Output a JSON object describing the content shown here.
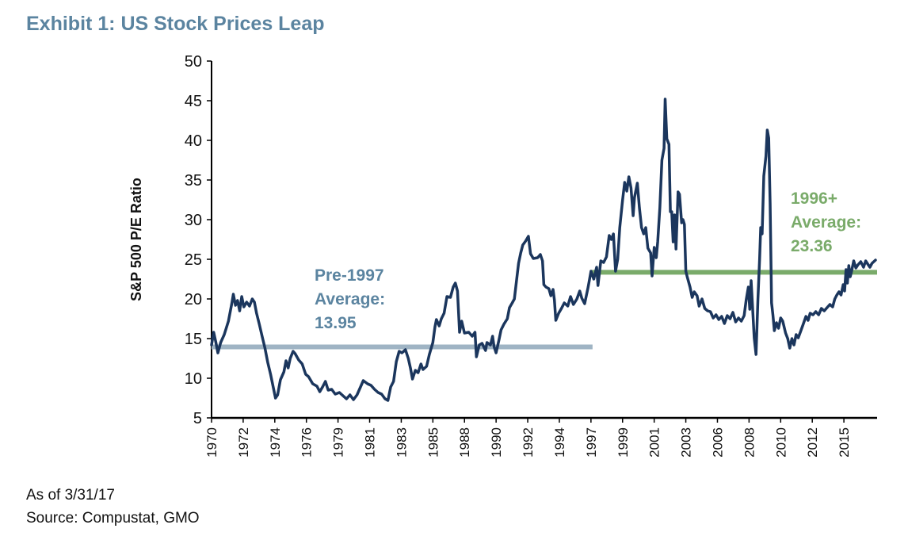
{
  "title": "Exhibit 1: US Stock Prices Leap",
  "footnotes": [
    "As of 3/31/17",
    "Source: Compustat, GMO"
  ],
  "chart_data": {
    "type": "line",
    "title": "Exhibit 1: US Stock Prices Leap",
    "xlabel": "",
    "ylabel": "S&P 500 P/E Ratio",
    "ylim": [
      5,
      50
    ],
    "xlim": [
      1970,
      2017.25
    ],
    "yticks": [
      5,
      10,
      15,
      20,
      25,
      30,
      35,
      40,
      45,
      50
    ],
    "xtick_labels": [
      "1970",
      "1972",
      "1974",
      "1976",
      "1979",
      "1981",
      "1983",
      "1985",
      "1988",
      "1990",
      "1992",
      "1994",
      "1997",
      "1999",
      "2001",
      "2003",
      "2006",
      "2008",
      "2010",
      "2012",
      "2015"
    ],
    "xtick_positions": [
      1970,
      1972.25,
      1974.5,
      1976.75,
      1979,
      1981.25,
      1983.5,
      1985.75,
      1988,
      1990.25,
      1992.5,
      1994.75,
      1997,
      1999.25,
      2001.5,
      2003.75,
      2006,
      2008.25,
      2010.5,
      2012.75,
      2015
    ],
    "grid": false,
    "colors": {
      "series": "#1b365d",
      "pre_avg": "#9fb4c4",
      "post_avg": "#7aab6a",
      "pre_text": "#5b84a0",
      "post_text": "#7aab6a",
      "title": "#5b84a0"
    },
    "series": [
      {
        "name": "S&P 500 P/E Ratio",
        "points": [
          [
            1970.0,
            14.2
          ],
          [
            1970.15,
            15.8
          ],
          [
            1970.3,
            14.6
          ],
          [
            1970.45,
            13.2
          ],
          [
            1970.65,
            14.5
          ],
          [
            1970.9,
            15.5
          ],
          [
            1971.2,
            17.2
          ],
          [
            1971.45,
            19.5
          ],
          [
            1971.55,
            20.6
          ],
          [
            1971.7,
            19.2
          ],
          [
            1971.85,
            19.8
          ],
          [
            1972.0,
            18.5
          ],
          [
            1972.15,
            20.3
          ],
          [
            1972.3,
            19.0
          ],
          [
            1972.5,
            19.6
          ],
          [
            1972.7,
            19.1
          ],
          [
            1972.9,
            20.0
          ],
          [
            1973.05,
            19.6
          ],
          [
            1973.2,
            18.2
          ],
          [
            1973.4,
            16.8
          ],
          [
            1973.6,
            15.3
          ],
          [
            1973.8,
            13.8
          ],
          [
            1974.0,
            12.0
          ],
          [
            1974.2,
            10.5
          ],
          [
            1974.4,
            8.8
          ],
          [
            1974.55,
            7.5
          ],
          [
            1974.7,
            7.9
          ],
          [
            1974.9,
            9.8
          ],
          [
            1975.15,
            10.8
          ],
          [
            1975.3,
            12.2
          ],
          [
            1975.45,
            11.3
          ],
          [
            1975.6,
            12.5
          ],
          [
            1975.8,
            13.4
          ],
          [
            1975.95,
            13.1
          ],
          [
            1976.2,
            12.3
          ],
          [
            1976.45,
            11.8
          ],
          [
            1976.7,
            10.5
          ],
          [
            1976.9,
            10.2
          ],
          [
            1977.2,
            9.3
          ],
          [
            1977.5,
            9.0
          ],
          [
            1977.7,
            8.3
          ],
          [
            1977.9,
            8.9
          ],
          [
            1978.1,
            9.6
          ],
          [
            1978.3,
            8.5
          ],
          [
            1978.55,
            8.6
          ],
          [
            1978.8,
            8.0
          ],
          [
            1979.1,
            8.2
          ],
          [
            1979.35,
            7.8
          ],
          [
            1979.6,
            7.4
          ],
          [
            1979.85,
            7.9
          ],
          [
            1980.1,
            7.3
          ],
          [
            1980.35,
            7.9
          ],
          [
            1980.6,
            8.9
          ],
          [
            1980.8,
            9.7
          ],
          [
            1981.1,
            9.3
          ],
          [
            1981.35,
            9.1
          ],
          [
            1981.6,
            8.6
          ],
          [
            1981.85,
            8.2
          ],
          [
            1982.1,
            8.0
          ],
          [
            1982.35,
            7.4
          ],
          [
            1982.55,
            7.2
          ],
          [
            1982.75,
            8.9
          ],
          [
            1982.95,
            9.6
          ],
          [
            1983.15,
            12.1
          ],
          [
            1983.35,
            13.4
          ],
          [
            1983.55,
            13.2
          ],
          [
            1983.8,
            13.6
          ],
          [
            1984.0,
            12.5
          ],
          [
            1984.15,
            11.3
          ],
          [
            1984.3,
            9.9
          ],
          [
            1984.5,
            11.0
          ],
          [
            1984.7,
            10.7
          ],
          [
            1984.9,
            11.8
          ],
          [
            1985.05,
            11.1
          ],
          [
            1985.3,
            11.5
          ],
          [
            1985.5,
            13.0
          ],
          [
            1985.75,
            14.5
          ],
          [
            1985.9,
            16.5
          ],
          [
            1986.0,
            17.4
          ],
          [
            1986.2,
            16.6
          ],
          [
            1986.35,
            17.5
          ],
          [
            1986.55,
            18.2
          ],
          [
            1986.75,
            20.3
          ],
          [
            1987.0,
            20.2
          ],
          [
            1987.2,
            21.5
          ],
          [
            1987.35,
            22.0
          ],
          [
            1987.5,
            21.0
          ],
          [
            1987.65,
            15.8
          ],
          [
            1987.8,
            17.2
          ],
          [
            1988.0,
            15.7
          ],
          [
            1988.3,
            15.8
          ],
          [
            1988.55,
            15.3
          ],
          [
            1988.75,
            15.8
          ],
          [
            1988.85,
            12.7
          ],
          [
            1989.05,
            14.2
          ],
          [
            1989.25,
            14.4
          ],
          [
            1989.5,
            13.5
          ],
          [
            1989.6,
            14.5
          ],
          [
            1989.85,
            14.2
          ],
          [
            1990.0,
            15.3
          ],
          [
            1990.1,
            14.0
          ],
          [
            1990.25,
            13.2
          ],
          [
            1990.45,
            14.8
          ],
          [
            1990.6,
            16.1
          ],
          [
            1990.8,
            16.8
          ],
          [
            1991.05,
            17.5
          ],
          [
            1991.2,
            18.9
          ],
          [
            1991.4,
            19.5
          ],
          [
            1991.55,
            20.0
          ],
          [
            1991.7,
            22.3
          ],
          [
            1991.85,
            24.5
          ],
          [
            1992.0,
            25.8
          ],
          [
            1992.15,
            26.8
          ],
          [
            1992.35,
            27.3
          ],
          [
            1992.55,
            27.9
          ],
          [
            1992.7,
            25.7
          ],
          [
            1992.9,
            25.1
          ],
          [
            1993.2,
            25.2
          ],
          [
            1993.4,
            25.6
          ],
          [
            1993.55,
            24.8
          ],
          [
            1993.65,
            21.8
          ],
          [
            1993.8,
            21.5
          ],
          [
            1994.0,
            21.3
          ],
          [
            1994.15,
            20.4
          ],
          [
            1994.3,
            21.2
          ],
          [
            1994.4,
            19.9
          ],
          [
            1994.5,
            17.3
          ],
          [
            1994.7,
            18.2
          ],
          [
            1994.9,
            18.8
          ],
          [
            1995.1,
            19.5
          ],
          [
            1995.35,
            19.1
          ],
          [
            1995.55,
            20.3
          ],
          [
            1995.75,
            19.3
          ],
          [
            1996.0,
            20.0
          ],
          [
            1996.2,
            21.0
          ],
          [
            1996.35,
            20.1
          ],
          [
            1996.55,
            19.4
          ],
          [
            1996.8,
            21.5
          ],
          [
            1997.0,
            23.5
          ],
          [
            1997.2,
            22.5
          ],
          [
            1997.4,
            24.0
          ],
          [
            1997.5,
            21.7
          ],
          [
            1997.7,
            24.8
          ],
          [
            1997.9,
            24.6
          ],
          [
            1998.1,
            25.3
          ],
          [
            1998.3,
            28.0
          ],
          [
            1998.45,
            27.5
          ],
          [
            1998.6,
            28.2
          ],
          [
            1998.75,
            23.5
          ],
          [
            1998.9,
            25.0
          ],
          [
            1999.05,
            29.0
          ],
          [
            1999.25,
            32.5
          ],
          [
            1999.4,
            34.7
          ],
          [
            1999.55,
            33.6
          ],
          [
            1999.7,
            35.4
          ],
          [
            1999.85,
            34.0
          ],
          [
            2000.0,
            30.5
          ],
          [
            2000.1,
            32.8
          ],
          [
            2000.3,
            34.6
          ],
          [
            2000.45,
            31.5
          ],
          [
            2000.6,
            29.0
          ],
          [
            2000.75,
            28.2
          ],
          [
            2000.9,
            29.0
          ],
          [
            2001.05,
            26.4
          ],
          [
            2001.25,
            25.8
          ],
          [
            2001.35,
            22.9
          ],
          [
            2001.5,
            26.5
          ],
          [
            2001.65,
            25.2
          ],
          [
            2001.75,
            27.2
          ],
          [
            2001.9,
            31.5
          ],
          [
            2002.05,
            37.5
          ],
          [
            2002.2,
            39.0
          ],
          [
            2002.28,
            45.2
          ],
          [
            2002.4,
            40.2
          ],
          [
            2002.55,
            39.5
          ],
          [
            2002.65,
            31.0
          ],
          [
            2002.75,
            31.0
          ],
          [
            2002.85,
            27.2
          ],
          [
            2002.95,
            30.6
          ],
          [
            2003.05,
            26.3
          ],
          [
            2003.2,
            33.5
          ],
          [
            2003.3,
            33.2
          ],
          [
            2003.45,
            29.6
          ],
          [
            2003.55,
            30.0
          ],
          [
            2003.65,
            29.4
          ],
          [
            2003.75,
            23.5
          ],
          [
            2003.85,
            22.8
          ],
          [
            2004.05,
            21.5
          ],
          [
            2004.2,
            20.2
          ],
          [
            2004.35,
            20.9
          ],
          [
            2004.55,
            20.4
          ],
          [
            2004.7,
            19.1
          ],
          [
            2004.9,
            20.0
          ],
          [
            2005.1,
            18.8
          ],
          [
            2005.3,
            18.5
          ],
          [
            2005.5,
            18.4
          ],
          [
            2005.7,
            17.6
          ],
          [
            2005.9,
            18.0
          ],
          [
            2006.1,
            17.4
          ],
          [
            2006.3,
            17.8
          ],
          [
            2006.5,
            16.9
          ],
          [
            2006.7,
            17.9
          ],
          [
            2006.9,
            17.5
          ],
          [
            2007.1,
            18.3
          ],
          [
            2007.3,
            17.1
          ],
          [
            2007.5,
            17.6
          ],
          [
            2007.7,
            17.2
          ],
          [
            2007.9,
            17.9
          ],
          [
            2008.05,
            19.9
          ],
          [
            2008.2,
            21.5
          ],
          [
            2008.3,
            18.7
          ],
          [
            2008.4,
            22.3
          ],
          [
            2008.5,
            19.0
          ],
          [
            2008.62,
            15.1
          ],
          [
            2008.75,
            13.0
          ],
          [
            2008.88,
            20.0
          ],
          [
            2009.0,
            25.0
          ],
          [
            2009.08,
            29.0
          ],
          [
            2009.18,
            28.2
          ],
          [
            2009.3,
            35.5
          ],
          [
            2009.45,
            38.0
          ],
          [
            2009.55,
            41.3
          ],
          [
            2009.65,
            40.3
          ],
          [
            2009.75,
            32.0
          ],
          [
            2009.85,
            19.5
          ],
          [
            2009.95,
            18.0
          ],
          [
            2010.05,
            16.0
          ],
          [
            2010.2,
            17.0
          ],
          [
            2010.35,
            16.3
          ],
          [
            2010.5,
            17.6
          ],
          [
            2010.65,
            17.2
          ],
          [
            2010.85,
            15.7
          ],
          [
            2011.0,
            15.0
          ],
          [
            2011.15,
            13.8
          ],
          [
            2011.3,
            15.0
          ],
          [
            2011.45,
            14.2
          ],
          [
            2011.6,
            15.5
          ],
          [
            2011.75,
            15.1
          ],
          [
            2011.9,
            15.8
          ],
          [
            2012.1,
            16.8
          ],
          [
            2012.3,
            17.8
          ],
          [
            2012.45,
            17.3
          ],
          [
            2012.6,
            18.2
          ],
          [
            2012.8,
            18.0
          ],
          [
            2013.0,
            18.4
          ],
          [
            2013.2,
            18.0
          ],
          [
            2013.4,
            18.8
          ],
          [
            2013.6,
            18.5
          ],
          [
            2013.8,
            18.9
          ],
          [
            2014.0,
            19.3
          ],
          [
            2014.2,
            19.0
          ],
          [
            2014.35,
            20.0
          ],
          [
            2014.5,
            20.5
          ],
          [
            2014.65,
            20.9
          ],
          [
            2014.8,
            20.5
          ],
          [
            2014.95,
            21.8
          ],
          [
            2015.05,
            21.0
          ],
          [
            2015.15,
            23.7
          ],
          [
            2015.25,
            22.0
          ],
          [
            2015.35,
            24.2
          ],
          [
            2015.45,
            22.8
          ],
          [
            2015.55,
            23.5
          ],
          [
            2015.7,
            24.8
          ],
          [
            2015.85,
            23.9
          ],
          [
            2016.0,
            24.3
          ],
          [
            2016.2,
            24.7
          ],
          [
            2016.4,
            24.0
          ],
          [
            2016.55,
            24.8
          ],
          [
            2016.7,
            24.4
          ],
          [
            2016.85,
            24.0
          ],
          [
            2017.0,
            24.5
          ],
          [
            2017.25,
            24.9
          ]
        ]
      }
    ],
    "reference_lines": [
      {
        "name": "Pre-1997 Average",
        "value": 13.95,
        "x_start": 1970,
        "x_end": 1997,
        "label_lines": [
          "Pre-1997",
          "Average:",
          "13.95"
        ]
      },
      {
        "name": "1996+ Average",
        "value": 23.36,
        "x_start": 1997,
        "x_end": 2017.25,
        "label_lines": [
          "1996+",
          "Average:",
          "23.36"
        ]
      }
    ]
  }
}
